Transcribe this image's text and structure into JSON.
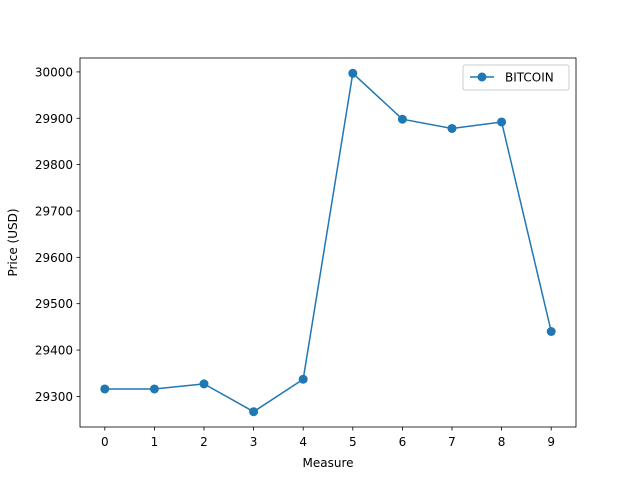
{
  "chart_data": {
    "type": "line",
    "xlabel": "Measure",
    "ylabel": "Price (USD)",
    "x": [
      0,
      1,
      2,
      3,
      4,
      5,
      6,
      7,
      8,
      9
    ],
    "xlim": [
      -0.5,
      9.5
    ],
    "ylim": [
      29234,
      30030
    ],
    "yticks": [
      29300,
      29400,
      29500,
      29600,
      29700,
      29800,
      29900,
      30000
    ],
    "grid": false,
    "legend_position": "top-right",
    "series": [
      {
        "name": "BITCOIN",
        "color": "#1f77b4",
        "marker": "circle",
        "values": [
          29316,
          29316,
          29327,
          29267,
          29337,
          29997,
          29898,
          29878,
          29892,
          29440
        ]
      }
    ]
  }
}
